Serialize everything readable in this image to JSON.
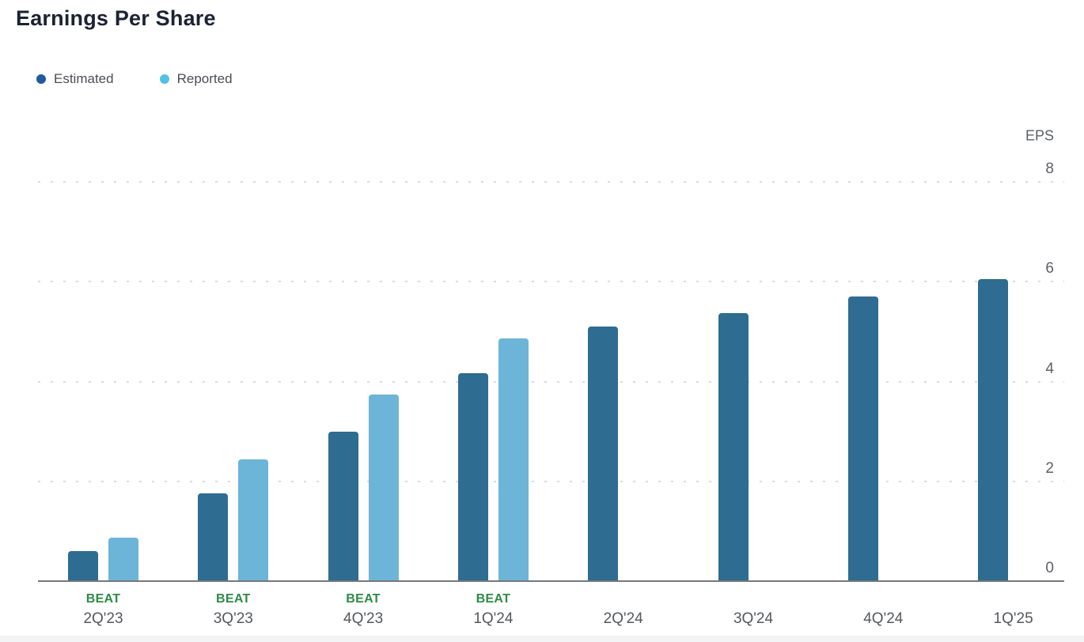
{
  "header": {
    "title": "Earnings Per Share"
  },
  "legend": [
    {
      "label": "Estimated",
      "color": "#1e5b9e"
    },
    {
      "label": "Reported",
      "color": "#50c2e3"
    }
  ],
  "chart_data": {
    "type": "bar",
    "title": "Earnings Per Share",
    "ylabel": "EPS",
    "y_ticks": [
      0,
      2,
      4,
      6,
      8
    ],
    "ylim": [
      0,
      8
    ],
    "grid": "horizontal-dotted",
    "legend_position": "top-left",
    "axis_labels_position": "right",
    "categories": [
      "2Q'23",
      "3Q'23",
      "4Q'23",
      "1Q'24",
      "2Q'24",
      "3Q'24",
      "4Q'24",
      "1Q'25"
    ],
    "series": [
      {
        "name": "Estimated",
        "color": "#2e6c91",
        "values": [
          0.58,
          1.75,
          2.98,
          4.15,
          5.09,
          5.36,
          5.69,
          6.04
        ]
      },
      {
        "name": "Reported",
        "color": "#6cb5d9",
        "values": [
          0.85,
          2.43,
          3.73,
          4.85,
          null,
          null,
          null,
          null
        ]
      }
    ],
    "beat_label": "BEAT",
    "beats": [
      true,
      true,
      true,
      true,
      false,
      false,
      false,
      false
    ]
  },
  "colors": {
    "title_text": "#1b2234",
    "legend_text": "#4a4f56",
    "estimated_bar": "#2e6c91",
    "reported_bar": "#6cb5d9",
    "beat_green": "#2e8b46",
    "tick_text": "#5b5f66",
    "category_text": "#54585e",
    "gridline": "#d9dbde",
    "axis_line": "#75787c",
    "bottom_strip": "#f3f4f5"
  }
}
